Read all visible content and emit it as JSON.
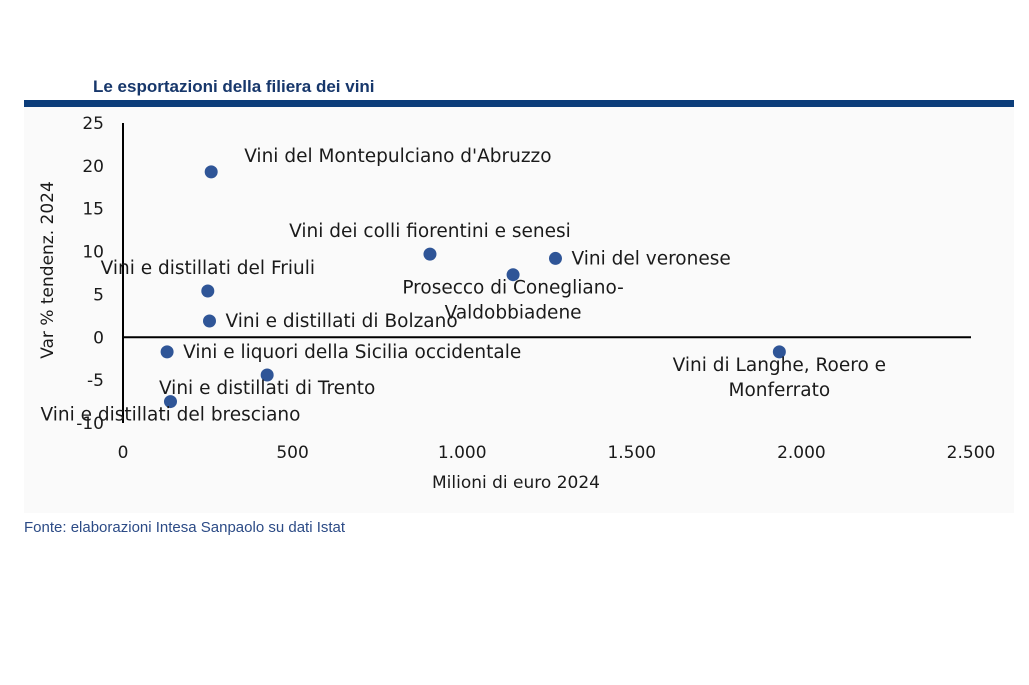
{
  "header": {
    "title": "Le esportazioni della filiera dei vini"
  },
  "footer": {
    "source": "Fonte: elaborazioni Intesa Sanpaolo su dati Istat"
  },
  "colors": {
    "title": "#17376b",
    "rule": "#0c3d7a",
    "point": "#2f5597",
    "axis": "#000000",
    "source": "#2c4b86"
  },
  "chart_data": {
    "type": "scatter",
    "title": "Le esportazioni della filiera dei vini",
    "xlabel": "Milioni di euro 2024",
    "ylabel": "Var % tendenz. 2024",
    "xlim": [
      0,
      2500
    ],
    "ylim": [
      -10,
      25
    ],
    "x_ticks": [
      0,
      500,
      1000,
      1500,
      2000,
      2500
    ],
    "x_tick_labels": [
      "0",
      "500",
      "1.000",
      "1.500",
      "2.000",
      "2.500"
    ],
    "y_ticks": [
      -10,
      -5,
      0,
      5,
      10,
      15,
      20,
      25
    ],
    "y_tick_labels": [
      "-10",
      "-5",
      "0",
      "5",
      "10",
      "15",
      "20",
      "25"
    ],
    "grid": false,
    "legend": "none",
    "points": [
      {
        "label": "Vini del Montepulciano d'Abruzzo",
        "x": 260,
        "y": 19.3,
        "label_pos": "above-right"
      },
      {
        "label": "Vini dei colli fiorentini e senesi",
        "x": 905,
        "y": 9.7,
        "label_pos": "above"
      },
      {
        "label": "Vini del veronese",
        "x": 1275,
        "y": 9.2,
        "label_pos": "right"
      },
      {
        "label": "Prosecco di Conegliano-Valdobbiadene",
        "label_lines": [
          "Prosecco di Conegliano-",
          "Valdobbiadene"
        ],
        "x": 1150,
        "y": 7.3,
        "label_pos": "below"
      },
      {
        "label": "Vini e distillati del Friuli",
        "x": 250,
        "y": 5.4,
        "label_pos": "above"
      },
      {
        "label": "Vini e distillati di Bolzano",
        "x": 255,
        "y": 1.9,
        "label_pos": "right"
      },
      {
        "label": "Vini e liquori della Sicilia occidentale",
        "x": 130,
        "y": -1.7,
        "label_pos": "right"
      },
      {
        "label": "Vini e distillati di Trento",
        "x": 425,
        "y": -4.4,
        "label_pos": "below"
      },
      {
        "label": "Vini e distillati del bresciano",
        "x": 140,
        "y": -7.5,
        "label_pos": "below"
      },
      {
        "label": "Vini di Langhe, Roero e Monferrato",
        "label_lines": [
          "Vini di Langhe, Roero e",
          "Monferrato"
        ],
        "x": 1935,
        "y": -1.7,
        "label_pos": "below"
      }
    ]
  }
}
